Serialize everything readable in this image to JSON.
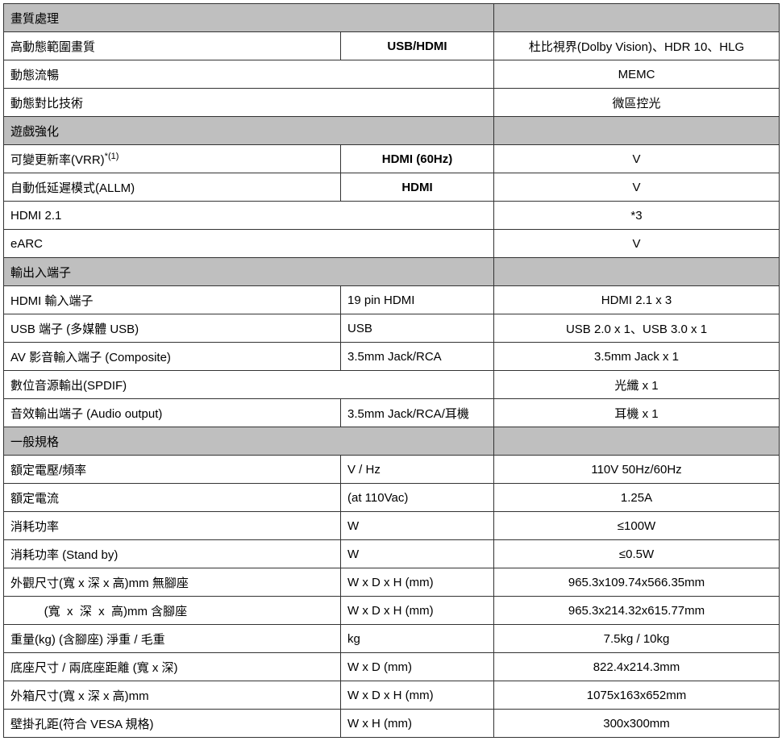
{
  "sections": {
    "picture": "畫質處理",
    "gaming": "遊戲強化",
    "io": "輸出入端子",
    "general": "一般規格"
  },
  "rows": {
    "hdr": {
      "label": "高動態範圍畫質",
      "unit": "USB/HDMI",
      "value": "杜比視界(Dolby Vision)、HDR 10、HLG"
    },
    "motion": {
      "label": "動態流暢",
      "unit": "",
      "value": "MEMC"
    },
    "contrast": {
      "label": "動態對比技術",
      "unit": "",
      "value": "微區控光"
    },
    "vrr": {
      "label_pre": "可變更新率(VRR)",
      "sup": "*(1)",
      "unit": "HDMI (60Hz)",
      "value": "V"
    },
    "allm": {
      "label": "自動低延遲模式(ALLM)",
      "unit": "HDMI",
      "value": "V"
    },
    "hdmi21": {
      "label": "HDMI 2.1",
      "unit": "",
      "value": "*3"
    },
    "earc": {
      "label": "eARC",
      "unit": "",
      "value": "V"
    },
    "hdmi_in": {
      "label": "HDMI  輸入端子",
      "unit": "19 pin HDMI",
      "value": "HDMI 2.1 x 3"
    },
    "usb": {
      "label": "USB 端子  (多媒體 USB)",
      "unit": "USB",
      "value": "USB 2.0 x 1、USB 3.0 x 1"
    },
    "av": {
      "label": "AV 影音輸入端子  (Composite)",
      "unit": "3.5mm Jack/RCA",
      "value": "3.5mm Jack x 1"
    },
    "spdif": {
      "label": "數位音源輸出(SPDIF)",
      "unit": "",
      "value": "光纖  x 1"
    },
    "audio_out": {
      "label": "音效輸出端子  (Audio output)",
      "unit": "3.5mm Jack/RCA/耳機",
      "value": "耳機  x 1"
    },
    "voltage": {
      "label": "額定電壓/頻率",
      "unit": "V / Hz",
      "value": "110V     50Hz/60Hz"
    },
    "current": {
      "label": "額定電流",
      "unit": "(at 110Vac)",
      "value": "1.25A"
    },
    "power": {
      "label": "消耗功率",
      "unit": "W",
      "value": "≤100W"
    },
    "standby": {
      "label": "消耗功率  (Stand by)",
      "unit": "W",
      "value": "≤0.5W"
    },
    "dim_no_stand": {
      "label": "外觀尺寸(寬  x  深  x  高)mm 無腳座",
      "unit": "W x D x H (mm)",
      "value": "965.3x109.74x566.35mm"
    },
    "dim_stand": {
      "label": "          (寬  x  深  x  高)mm 含腳座",
      "unit": "W x D x H (mm)",
      "value": "965.3x214.32x615.77mm"
    },
    "weight": {
      "label": "重量(kg)    (含腳座)    淨重  /  毛重",
      "unit": "kg",
      "value": "7.5kg / 10kg"
    },
    "base": {
      "label": "底座尺寸  /  兩底座距離 (寬 x 深)",
      "unit": "W x D (mm)",
      "value": "822.4x214.3mm"
    },
    "carton": {
      "label": "外箱尺寸(寬 x 深 x 高)mm",
      "unit": "W x D x H (mm)",
      "value": "1075x163x652mm"
    },
    "vesa": {
      "label": "壁掛孔距(符合 VESA 規格)",
      "unit": "W x H (mm)",
      "value": "300x300mm"
    }
  }
}
